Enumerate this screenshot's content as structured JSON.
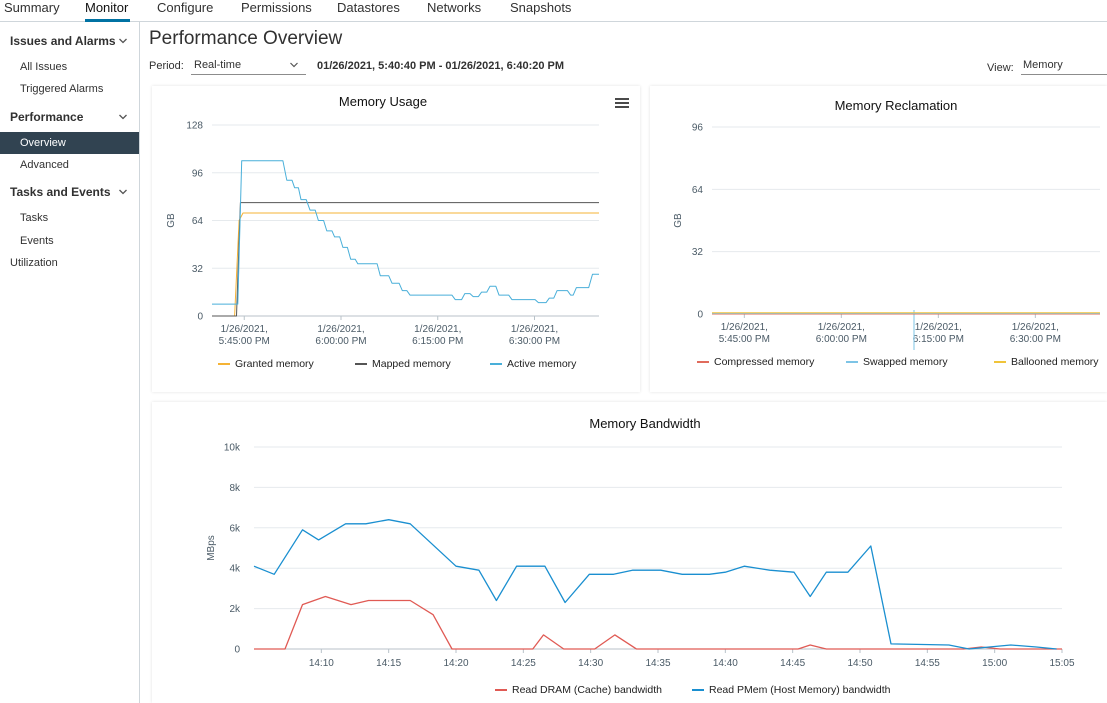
{
  "tabs": [
    "Summary",
    "Monitor",
    "Configure",
    "Permissions",
    "Datastores",
    "Networks",
    "Snapshots"
  ],
  "active_tab": "Monitor",
  "sidebar": {
    "groups": [
      {
        "label": "Issues and Alarms",
        "items": [
          "All Issues",
          "Triggered Alarms"
        ]
      },
      {
        "label": "Performance",
        "items": [
          "Overview",
          "Advanced"
        ]
      },
      {
        "label": "Tasks and Events",
        "items": [
          "Tasks",
          "Events"
        ]
      }
    ],
    "active_item": "Overview",
    "utilization": "Utilization"
  },
  "header": {
    "title": "Performance Overview",
    "period_label": "Period:",
    "period_value": "Real-time",
    "range": "01/26/2021, 5:40:40 PM - 01/26/2021, 6:40:20 PM",
    "view_label": "View:",
    "view_value": "Memory"
  },
  "colors": {
    "granted": "#f5b335",
    "mapped": "#555555",
    "active": "#49afd9",
    "compressed": "#e06b5c",
    "swapped": "#7dc4e6",
    "ballooned": "#f0c43a",
    "read_dram": "#e05a54",
    "read_pmem": "#1a8fd0"
  },
  "chart_data": [
    {
      "type": "line",
      "title": "Memory Usage",
      "ylabel": "GB",
      "ylim": [
        0,
        128
      ],
      "yticks": [
        0,
        32,
        64,
        96,
        128
      ],
      "xlim": [
        0,
        60
      ],
      "xticks": [
        {
          "x": 5,
          "label": [
            "1/26/2021,",
            "5:45:00 PM"
          ]
        },
        {
          "x": 20,
          "label": [
            "1/26/2021,",
            "6:00:00 PM"
          ]
        },
        {
          "x": 35,
          "label": [
            "1/26/2021,",
            "6:15:00 PM"
          ]
        },
        {
          "x": 50,
          "label": [
            "1/26/2021,",
            "6:30:00 PM"
          ]
        }
      ],
      "series": [
        {
          "name": "Granted memory",
          "color_key": "granted",
          "points": [
            [
              0,
              0
            ],
            [
              3.5,
              0
            ],
            [
              4.2,
              64
            ],
            [
              4.8,
              69
            ],
            [
              60,
              69
            ]
          ]
        },
        {
          "name": "Mapped memory",
          "color_key": "mapped",
          "points": [
            [
              0,
              0
            ],
            [
              3.8,
              0
            ],
            [
              4.4,
              76
            ],
            [
              60,
              76
            ]
          ]
        },
        {
          "name": "Active memory",
          "color_key": "active",
          "points": [
            [
              0,
              8
            ],
            [
              4,
              8
            ],
            [
              4.6,
              104
            ],
            [
              11,
              104
            ],
            [
              11.6,
              91
            ],
            [
              12.4,
              91
            ],
            [
              12.8,
              86
            ],
            [
              13.4,
              86
            ],
            [
              13.8,
              78
            ],
            [
              14.6,
              78
            ],
            [
              15.2,
              71
            ],
            [
              16,
              71
            ],
            [
              16.5,
              64
            ],
            [
              17.3,
              64
            ],
            [
              17.8,
              57
            ],
            [
              18.6,
              57
            ],
            [
              19,
              53
            ],
            [
              19.8,
              53
            ],
            [
              20.3,
              46
            ],
            [
              21,
              46
            ],
            [
              21.5,
              38
            ],
            [
              22.2,
              38
            ],
            [
              22.6,
              35
            ],
            [
              25.6,
              35
            ],
            [
              26.1,
              27
            ],
            [
              27.4,
              27
            ],
            [
              27.9,
              22
            ],
            [
              29,
              22
            ],
            [
              29.5,
              17
            ],
            [
              30.2,
              17
            ],
            [
              30.7,
              14
            ],
            [
              37.2,
              14
            ],
            [
              37.7,
              11
            ],
            [
              38.7,
              11
            ],
            [
              39.2,
              15
            ],
            [
              40,
              15
            ],
            [
              40.5,
              13
            ],
            [
              41.3,
              13
            ],
            [
              41.8,
              16
            ],
            [
              42.6,
              16
            ],
            [
              43.1,
              20
            ],
            [
              44,
              20
            ],
            [
              44.5,
              14
            ],
            [
              46,
              14
            ],
            [
              46.5,
              11
            ],
            [
              50.1,
              11
            ],
            [
              50.6,
              9
            ],
            [
              51.8,
              9
            ],
            [
              52.3,
              12
            ],
            [
              53,
              12
            ],
            [
              53.5,
              17
            ],
            [
              55.1,
              17
            ],
            [
              55.6,
              14
            ],
            [
              56,
              14
            ],
            [
              56.5,
              19
            ],
            [
              58.4,
              19
            ],
            [
              59,
              28
            ],
            [
              60,
              28
            ]
          ]
        }
      ]
    },
    {
      "type": "line",
      "title": "Memory Reclamation",
      "ylabel": "GB",
      "ylim": [
        0,
        96
      ],
      "yticks": [
        0,
        32,
        64,
        96
      ],
      "xlim": [
        0,
        60
      ],
      "xticks": [
        {
          "x": 5,
          "label": [
            "1/26/2021,",
            "5:45:00 PM"
          ]
        },
        {
          "x": 20,
          "label": [
            "1/26/2021,",
            "6:00:00 PM"
          ]
        },
        {
          "x": 35,
          "label": [
            "1/26/2021,",
            "6:15:00 PM"
          ]
        },
        {
          "x": 50,
          "label": [
            "1/26/2021,",
            "6:30:00 PM"
          ]
        }
      ],
      "series": [
        {
          "name": "Compressed memory",
          "color_key": "compressed",
          "points": [
            [
              0,
              0
            ],
            [
              60,
              0
            ]
          ]
        },
        {
          "name": "Swapped memory",
          "color_key": "swapped",
          "points": [
            [
              0,
              0.3
            ],
            [
              60,
              0.3
            ]
          ]
        },
        {
          "name": "Ballooned memory",
          "color_key": "ballooned",
          "points": [
            [
              0,
              0.6
            ],
            [
              60,
              0.6
            ]
          ]
        }
      ]
    },
    {
      "type": "line",
      "title": "Memory Bandwidth",
      "ylabel": "MBps",
      "ylim": [
        0,
        10000
      ],
      "yticks": [
        {
          "v": 0,
          "label": "0"
        },
        {
          "v": 2000,
          "label": "2k"
        },
        {
          "v": 4000,
          "label": "4k"
        },
        {
          "v": 6000,
          "label": "6k"
        },
        {
          "v": 8000,
          "label": "8k"
        },
        {
          "v": 10000,
          "label": "10k"
        }
      ],
      "xlim": [
        5,
        65
      ],
      "xticks": [
        {
          "x": 10,
          "label": "14:10"
        },
        {
          "x": 15,
          "label": "14:15"
        },
        {
          "x": 20,
          "label": "14:20"
        },
        {
          "x": 25,
          "label": "14:25"
        },
        {
          "x": 30,
          "label": "14:30"
        },
        {
          "x": 35,
          "label": "14:35"
        },
        {
          "x": 40,
          "label": "14:40"
        },
        {
          "x": 45,
          "label": "14:45"
        },
        {
          "x": 50,
          "label": "14:50"
        },
        {
          "x": 55,
          "label": "14:55"
        },
        {
          "x": 60,
          "label": "15:00"
        },
        {
          "x": 65,
          "label": "15:05"
        }
      ],
      "series": [
        {
          "name": "Read DRAM (Cache) bandwidth",
          "color_key": "read_dram",
          "points": [
            [
              5,
              0
            ],
            [
              7.3,
              0
            ],
            [
              8.6,
              2200
            ],
            [
              10.3,
              2600
            ],
            [
              12.2,
              2200
            ],
            [
              13.5,
              2400
            ],
            [
              16.6,
              2400
            ],
            [
              18.3,
              1700
            ],
            [
              19.7,
              0
            ],
            [
              25.7,
              0
            ],
            [
              26.5,
              700
            ],
            [
              28,
              0
            ],
            [
              30.3,
              0
            ],
            [
              31.8,
              700
            ],
            [
              33.4,
              0
            ],
            [
              45.4,
              0
            ],
            [
              46.3,
              200
            ],
            [
              47.5,
              0
            ],
            [
              57.7,
              0
            ],
            [
              59,
              100
            ],
            [
              60.4,
              0
            ],
            [
              65,
              0
            ]
          ]
        },
        {
          "name": "Read PMem (Host Memory) bandwidth",
          "color_key": "read_pmem",
          "points": [
            [
              5,
              4100
            ],
            [
              6.5,
              3700
            ],
            [
              8.6,
              5900
            ],
            [
              9.8,
              5400
            ],
            [
              11.8,
              6200
            ],
            [
              13.3,
              6200
            ],
            [
              15,
              6400
            ],
            [
              16.6,
              6200
            ],
            [
              20,
              4100
            ],
            [
              21.7,
              3900
            ],
            [
              23,
              2400
            ],
            [
              24.5,
              4100
            ],
            [
              26.6,
              4100
            ],
            [
              28.1,
              2300
            ],
            [
              29.9,
              3700
            ],
            [
              31.7,
              3700
            ],
            [
              33.1,
              3900
            ],
            [
              35.2,
              3900
            ],
            [
              36.8,
              3700
            ],
            [
              38.8,
              3700
            ],
            [
              40,
              3800
            ],
            [
              41.4,
              4100
            ],
            [
              43.3,
              3900
            ],
            [
              45.1,
              3800
            ],
            [
              46.3,
              2600
            ],
            [
              47.5,
              3800
            ],
            [
              49.1,
              3800
            ],
            [
              50.8,
              5100
            ],
            [
              52.3,
              250.0
            ],
            [
              56.6,
              200
            ],
            [
              58.1,
              0
            ],
            [
              59.6,
              100
            ],
            [
              61.2,
              200
            ],
            [
              63.1,
              100
            ],
            [
              64.6,
              0
            ]
          ]
        }
      ]
    }
  ]
}
